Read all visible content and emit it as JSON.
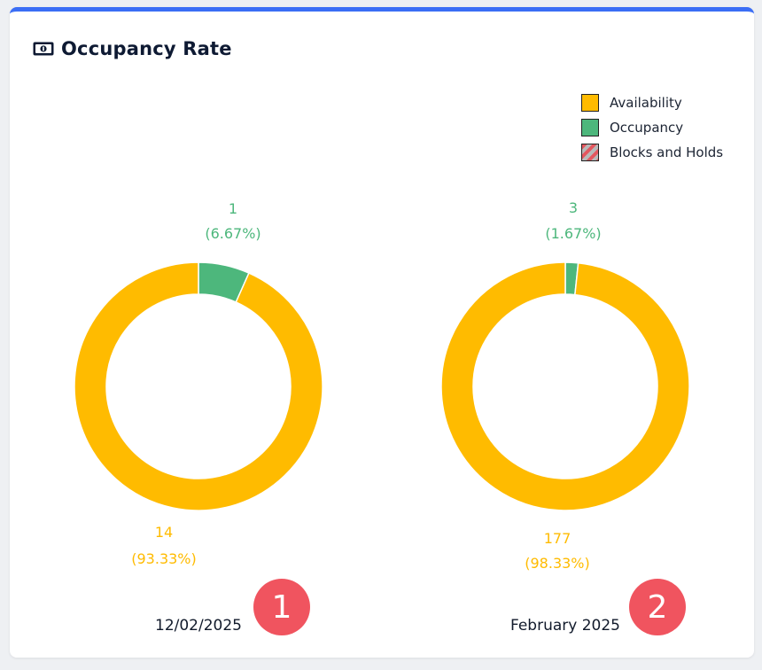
{
  "card": {
    "title": "Occupancy Rate",
    "title_icon": "money-bill-icon",
    "accent_color": "#3b6ef5"
  },
  "legend": {
    "items": [
      {
        "label": "Availability",
        "color": "#ffbb00"
      },
      {
        "label": "Occupancy",
        "color": "#4db77c"
      },
      {
        "label": "Blocks and Holds",
        "color": "hatched-red-gray"
      }
    ]
  },
  "chart_data": [
    {
      "type": "pie",
      "style": "donut",
      "date_label": "12/02/2025",
      "slices": [
        {
          "name": "Occupancy",
          "value": 1,
          "percent_label": "(6.67%)",
          "color": "#4db77c"
        },
        {
          "name": "Availability",
          "value": 14,
          "percent_label": "(93.33%)",
          "color": "#ffbb00"
        }
      ]
    },
    {
      "type": "pie",
      "style": "donut",
      "date_label": "February 2025",
      "slices": [
        {
          "name": "Occupancy",
          "value": 3,
          "percent_label": "(1.67%)",
          "color": "#4db77c"
        },
        {
          "name": "Availability",
          "value": 177,
          "percent_label": "(98.33%)",
          "color": "#ffbb00"
        }
      ]
    }
  ],
  "badges": [
    "1",
    "2"
  ],
  "badge_color": "#f0545f"
}
